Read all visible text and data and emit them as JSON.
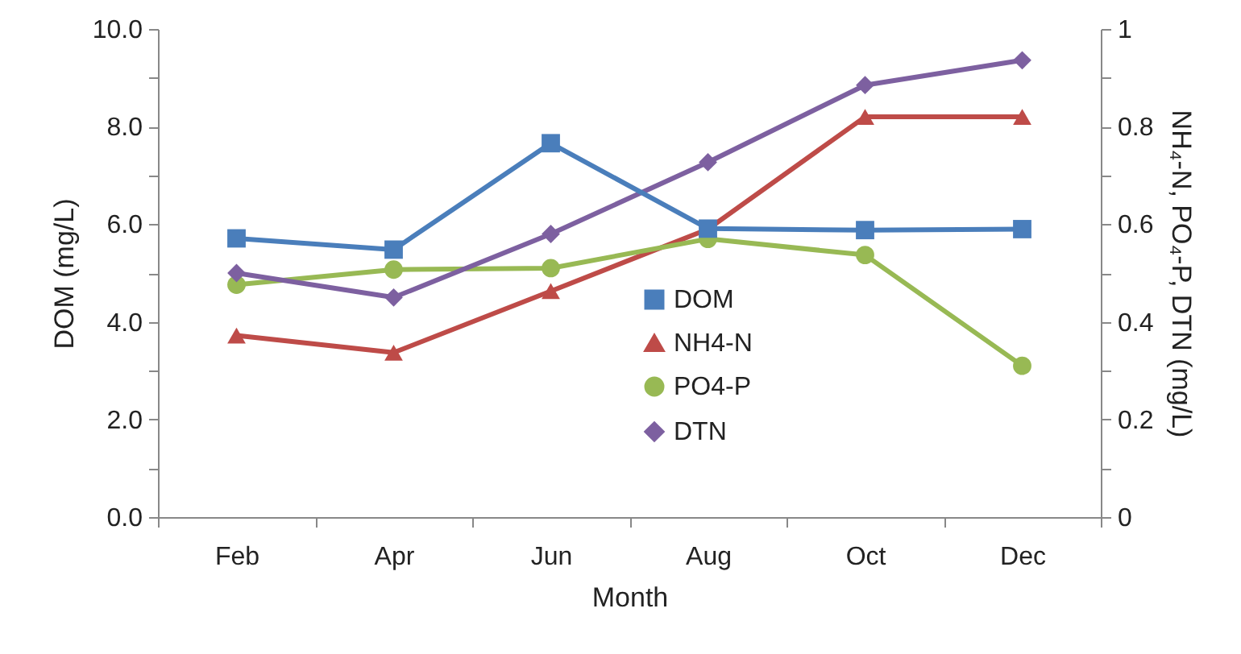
{
  "chart_data": {
    "type": "line",
    "xlabel": "Month",
    "ylabel": "DOM  (mg/L)",
    "y2label": "NH₄-N, PO₄-P, DTN (mg/L)",
    "categories": [
      "Feb",
      "Apr",
      "Jun",
      "Aug",
      "Oct",
      "Dec"
    ],
    "series": [
      {
        "name": "DOM",
        "color": "#4a7ebb",
        "marker": "square",
        "values": [
          5.71,
          5.48,
          7.66,
          5.91,
          5.88,
          5.9
        ]
      },
      {
        "name": "NH4-N",
        "color": "#be4b48",
        "marker": "triangle",
        "axis": "y2",
        "values": [
          0.372,
          0.337,
          0.463,
          0.59,
          0.82,
          0.82
        ]
      },
      {
        "name": "PO4-P",
        "color": "#98b954",
        "marker": "circle",
        "axis": "y2",
        "values": [
          0.476,
          0.507,
          0.51,
          0.57,
          0.537,
          0.31
        ]
      },
      {
        "name": "DTN",
        "color": "#7d60a0",
        "marker": "diamond",
        "axis": "y2",
        "values": [
          0.5,
          0.45,
          0.58,
          0.727,
          0.885,
          0.936
        ]
      }
    ],
    "ylim": [
      0,
      10
    ],
    "yticks": [
      {
        "value": 0,
        "label": "0.0"
      },
      {
        "value": 1,
        "label": null
      },
      {
        "value": 2,
        "label": "2.0"
      },
      {
        "value": 3,
        "label": null
      },
      {
        "value": 4,
        "label": "4.0"
      },
      {
        "value": 5,
        "label": null
      },
      {
        "value": 6,
        "label": "6.0"
      },
      {
        "value": 7,
        "label": null
      },
      {
        "value": 8,
        "label": "8.0"
      },
      {
        "value": 9,
        "label": null
      },
      {
        "value": 10,
        "label": "10.0"
      }
    ],
    "y2lim": [
      0,
      1
    ],
    "y2ticks": [
      0,
      {
        "value": 0.1,
        "label": null
      },
      0.2,
      {
        "value": 0.3,
        "label": null
      },
      0.4,
      {
        "value": 0.5,
        "label": null
      },
      0.6,
      {
        "value": 0.7,
        "label": null
      },
      0.8,
      {
        "value": 0.9,
        "label": null
      },
      1
    ],
    "grid": false,
    "legend": "center",
    "line_style": "solid"
  }
}
